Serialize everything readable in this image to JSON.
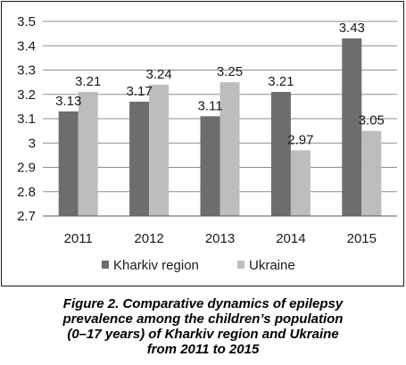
{
  "chart_data": {
    "type": "bar",
    "categories": [
      "2011",
      "2012",
      "2013",
      "2014",
      "2015"
    ],
    "series": [
      {
        "name": "Kharkiv region",
        "values": [
          3.13,
          3.17,
          3.11,
          3.21,
          3.43
        ],
        "labels": [
          "3.13",
          "3.17",
          "3.11",
          "3.21",
          "3.43"
        ],
        "color": "#6d6d6d"
      },
      {
        "name": "Ukraine",
        "values": [
          3.21,
          3.24,
          3.25,
          2.97,
          3.05
        ],
        "labels": [
          "3.21",
          "3.24",
          "3.25",
          "2.97",
          "3.05"
        ],
        "color": "#bdbdbd"
      }
    ],
    "ylim": [
      2.7,
      3.5
    ],
    "yticks": [
      "2.7",
      "2.8",
      "2.9",
      "3",
      "3.1",
      "3.2",
      "3.3",
      "3.4",
      "3.5"
    ],
    "grid": true,
    "legend_position": "bottom"
  },
  "caption": {
    "lines": [
      "Figure 2. Comparative dynamics of epilepsy",
      "prevalence among the children’s population",
      "(0–17 years) of Kharkiv region and Ukraine",
      "from 2011 to 2015"
    ]
  }
}
